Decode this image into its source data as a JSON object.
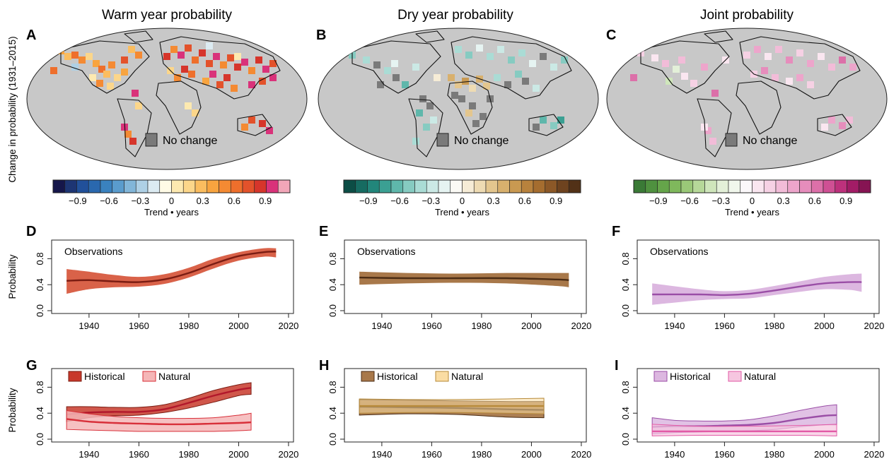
{
  "figure": {
    "column_titles": [
      "Warm year probability",
      "Dry year probability",
      "Joint probability"
    ],
    "row_ylabel_maps": "Change in probability (1931–2015)",
    "probability_label": "Probability",
    "no_change_label": "No change",
    "panel_letters": [
      "A",
      "B",
      "C",
      "D",
      "E",
      "F",
      "G",
      "H",
      "I"
    ]
  },
  "colorbars": [
    {
      "name": "warm",
      "xlabel": "Trend • years",
      "tick_labels": [
        "−0.9",
        "−0.6",
        "−0.3",
        "0",
        "0.3",
        "0.6",
        "0.9"
      ],
      "colors": [
        "#15164a",
        "#1d3573",
        "#21509a",
        "#2a68ae",
        "#3a82bf",
        "#5a9ccd",
        "#82b6d9",
        "#aed0e5",
        "#dcebf2",
        "#fffbe6",
        "#fde9b0",
        "#fcd68a",
        "#fbbd5f",
        "#f8a43f",
        "#f48a33",
        "#ee6f2c",
        "#e3522b",
        "#d6352b",
        "#d9327a",
        "#f2a6b8"
      ]
    },
    {
      "name": "dry",
      "xlabel": "Trend • years",
      "tick_labels": [
        "−0.9",
        "−0.6",
        "−0.3",
        "0",
        "0.3",
        "0.6",
        "0.9"
      ],
      "colors": [
        "#0c4d45",
        "#166b61",
        "#22867b",
        "#3ba093",
        "#5fb7ab",
        "#86cbc1",
        "#aadcd5",
        "#cbe9e5",
        "#e6f4f2",
        "#fbfaf5",
        "#f6ecd6",
        "#eedbb3",
        "#e4c68e",
        "#d8b06d",
        "#c99951",
        "#b8823d",
        "#a56d2f",
        "#8c5827",
        "#6e431f",
        "#523117"
      ]
    },
    {
      "name": "joint",
      "xlabel": "Trend • years",
      "tick_labels": [
        "−0.9",
        "−0.6",
        "−0.3",
        "0",
        "0.3",
        "0.6",
        "0.9"
      ],
      "colors": [
        "#3a7a36",
        "#4f913f",
        "#65a54a",
        "#7fb85c",
        "#9ac878",
        "#b6d899",
        "#cfe6bb",
        "#e3f0d8",
        "#f1f7ec",
        "#fbf8fa",
        "#fae6f0",
        "#f6d1e4",
        "#f2bcd8",
        "#eda5cb",
        "#e68dbc",
        "#dc70a9",
        "#cf5094",
        "#bd317c",
        "#a21c66",
        "#861453"
      ]
    }
  ],
  "legend_labels": {
    "historical": "Historical",
    "natural": "Natural"
  },
  "observations_label": "Observations",
  "colors": {
    "warm_hist": "#c8392b",
    "warm_band": "#d96249",
    "warm_line": "#7a1c12",
    "warm_nat_band": "#f5b6b7",
    "warm_nat_line": "#d8303a",
    "dry_band": "#a8784a",
    "dry_line": "#4b2c14",
    "dry_nat_band": "#fadca3",
    "dry_nat_line": "#b78a3a",
    "joint_band": "#dcb7e0",
    "joint_line": "#9a4ea6",
    "joint_nat_band": "#f6c6e0",
    "joint_nat_line": "#e25aa6",
    "ocean": "#ffffff",
    "land": "#c8c8c8",
    "nochange": "#7a7a7a"
  },
  "chart_data": [
    {
      "panel": "D",
      "type": "line",
      "title": "",
      "ylabel": "Probability",
      "xlim": [
        1925,
        2022
      ],
      "ylim": [
        0,
        1
      ],
      "xticks": [
        1940,
        1960,
        1980,
        2000,
        2020
      ],
      "yticks": [
        0.0,
        0.4,
        0.8
      ],
      "series": [
        {
          "name": "Observations",
          "x": [
            1931,
            1940,
            1950,
            1960,
            1970,
            1980,
            1990,
            2000,
            2010,
            2015
          ],
          "y": [
            0.46,
            0.47,
            0.45,
            0.44,
            0.48,
            0.58,
            0.72,
            0.84,
            0.9,
            0.91
          ],
          "lower": [
            0.26,
            0.33,
            0.36,
            0.37,
            0.41,
            0.51,
            0.65,
            0.77,
            0.83,
            0.82
          ],
          "upper": [
            0.64,
            0.6,
            0.55,
            0.52,
            0.56,
            0.66,
            0.8,
            0.9,
            0.96,
            0.96
          ]
        }
      ]
    },
    {
      "panel": "E",
      "type": "line",
      "title": "",
      "xlim": [
        1925,
        2022
      ],
      "ylim": [
        0,
        1
      ],
      "xticks": [
        1940,
        1960,
        1980,
        2000,
        2020
      ],
      "yticks": [
        0.0,
        0.4,
        0.8
      ],
      "series": [
        {
          "name": "Observations",
          "x": [
            1931,
            1950,
            1970,
            1990,
            2010,
            2015
          ],
          "y": [
            0.51,
            0.5,
            0.5,
            0.5,
            0.48,
            0.47
          ],
          "lower": [
            0.4,
            0.42,
            0.43,
            0.42,
            0.38,
            0.36
          ],
          "upper": [
            0.6,
            0.58,
            0.57,
            0.58,
            0.58,
            0.58
          ]
        }
      ]
    },
    {
      "panel": "F",
      "type": "line",
      "title": "",
      "xlim": [
        1925,
        2022
      ],
      "ylim": [
        0,
        1
      ],
      "xticks": [
        1940,
        1960,
        1980,
        2000,
        2020
      ],
      "yticks": [
        0.0,
        0.4,
        0.8
      ],
      "series": [
        {
          "name": "Observations",
          "x": [
            1931,
            1950,
            1960,
            1970,
            1980,
            1990,
            2000,
            2010,
            2015
          ],
          "y": [
            0.25,
            0.25,
            0.24,
            0.26,
            0.31,
            0.37,
            0.42,
            0.44,
            0.44
          ],
          "lower": [
            0.09,
            0.16,
            0.18,
            0.19,
            0.24,
            0.29,
            0.33,
            0.32,
            0.29
          ],
          "upper": [
            0.42,
            0.33,
            0.3,
            0.32,
            0.38,
            0.45,
            0.52,
            0.56,
            0.57
          ]
        }
      ]
    },
    {
      "panel": "G",
      "type": "line",
      "title": "",
      "ylabel": "Probability",
      "xlim": [
        1925,
        2022
      ],
      "ylim": [
        0,
        1
      ],
      "xticks": [
        1940,
        1960,
        1980,
        2000,
        2020
      ],
      "yticks": [
        0.0,
        0.4,
        0.8
      ],
      "series": [
        {
          "name": "Historical",
          "x": [
            1931,
            1940,
            1950,
            1960,
            1970,
            1980,
            1990,
            2000,
            2005
          ],
          "y": [
            0.38,
            0.41,
            0.42,
            0.42,
            0.46,
            0.56,
            0.67,
            0.76,
            0.79
          ],
          "lower": [
            0.27,
            0.33,
            0.36,
            0.37,
            0.41,
            0.48,
            0.57,
            0.67,
            0.69
          ],
          "upper": [
            0.5,
            0.5,
            0.49,
            0.49,
            0.53,
            0.63,
            0.75,
            0.84,
            0.87
          ]
        },
        {
          "name": "Natural",
          "x": [
            1931,
            1940,
            1950,
            1960,
            1970,
            1980,
            1990,
            2000,
            2005
          ],
          "y": [
            0.31,
            0.27,
            0.25,
            0.24,
            0.23,
            0.23,
            0.24,
            0.25,
            0.26
          ],
          "lower": [
            0.15,
            0.14,
            0.13,
            0.12,
            0.12,
            0.12,
            0.12,
            0.13,
            0.14
          ],
          "upper": [
            0.44,
            0.39,
            0.35,
            0.33,
            0.32,
            0.32,
            0.33,
            0.37,
            0.4
          ]
        }
      ]
    },
    {
      "panel": "H",
      "type": "line",
      "title": "",
      "xlim": [
        1925,
        2022
      ],
      "ylim": [
        0,
        1
      ],
      "xticks": [
        1940,
        1960,
        1980,
        2000,
        2020
      ],
      "yticks": [
        0.0,
        0.4,
        0.8
      ],
      "series": [
        {
          "name": "Historical",
          "x": [
            1931,
            1950,
            1970,
            1990,
            2005
          ],
          "y": [
            0.5,
            0.49,
            0.48,
            0.46,
            0.45
          ],
          "lower": [
            0.37,
            0.39,
            0.38,
            0.34,
            0.33
          ],
          "upper": [
            0.61,
            0.6,
            0.59,
            0.58,
            0.58
          ]
        },
        {
          "name": "Natural",
          "x": [
            1931,
            1950,
            1970,
            1990,
            2005
          ],
          "y": [
            0.51,
            0.51,
            0.51,
            0.51,
            0.51
          ],
          "lower": [
            0.4,
            0.41,
            0.41,
            0.4,
            0.39
          ],
          "upper": [
            0.62,
            0.61,
            0.61,
            0.62,
            0.63
          ]
        }
      ]
    },
    {
      "panel": "I",
      "type": "line",
      "title": "",
      "xlim": [
        1925,
        2022
      ],
      "ylim": [
        0,
        1
      ],
      "xticks": [
        1940,
        1960,
        1980,
        2000,
        2020
      ],
      "yticks": [
        0.0,
        0.4,
        0.8
      ],
      "series": [
        {
          "name": "Historical",
          "x": [
            1931,
            1940,
            1950,
            1960,
            1970,
            1980,
            1990,
            2000,
            2005
          ],
          "y": [
            0.19,
            0.2,
            0.2,
            0.21,
            0.22,
            0.25,
            0.31,
            0.36,
            0.37
          ],
          "lower": [
            0.08,
            0.1,
            0.11,
            0.12,
            0.13,
            0.15,
            0.19,
            0.22,
            0.22
          ],
          "upper": [
            0.33,
            0.29,
            0.28,
            0.28,
            0.3,
            0.36,
            0.44,
            0.51,
            0.53
          ]
        },
        {
          "name": "Natural",
          "x": [
            1931,
            1950,
            1970,
            1990,
            2005
          ],
          "y": [
            0.12,
            0.12,
            0.12,
            0.12,
            0.12
          ],
          "lower": [
            0.05,
            0.06,
            0.06,
            0.06,
            0.05
          ],
          "upper": [
            0.23,
            0.2,
            0.2,
            0.21,
            0.23
          ]
        }
      ]
    }
  ]
}
